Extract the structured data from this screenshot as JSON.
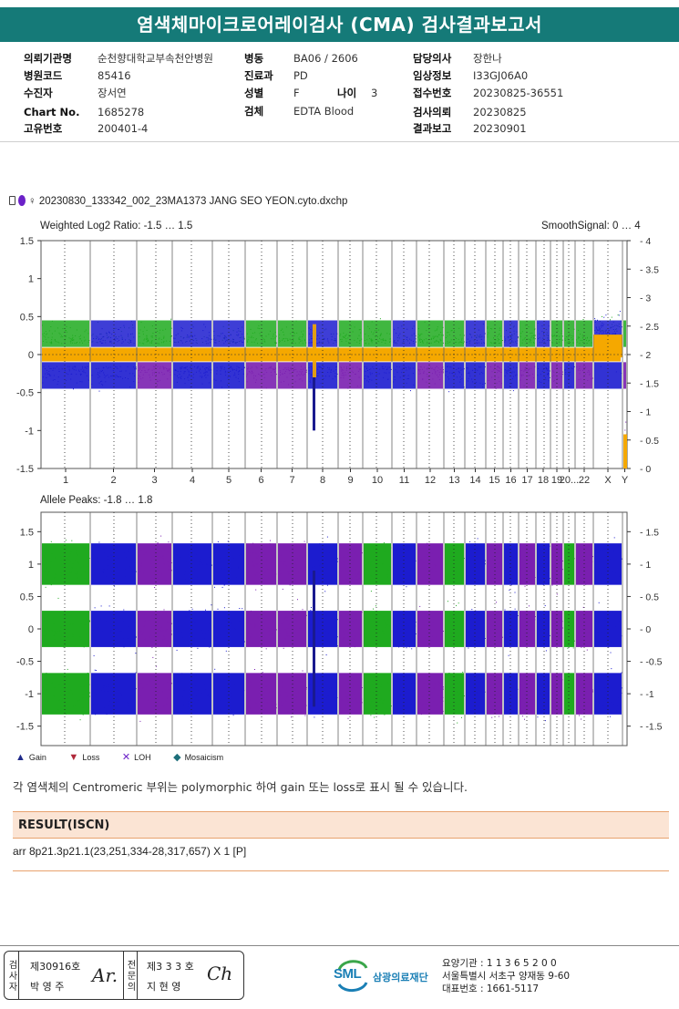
{
  "header": {
    "title": "염색체마이크로어레이검사 (CMA) 검사결과보고서"
  },
  "patient_info": {
    "col1": [
      {
        "label": "의뢰기관명",
        "value": "순천향대학교부속천안병원"
      },
      {
        "label": "병원코드",
        "value": "85416"
      },
      {
        "label": "수진자",
        "value": "장서연"
      },
      {
        "label": "Chart No.",
        "value": "1685278"
      },
      {
        "label": "고유번호",
        "value": "200401-4"
      }
    ],
    "col2": [
      {
        "label": "병동",
        "value": "BA06 / 2606"
      },
      {
        "label": "진료과",
        "value": "PD"
      },
      {
        "label": "성별",
        "value": "F"
      },
      {
        "label": "검체",
        "value": "EDTA Blood"
      }
    ],
    "age": {
      "label": "나이",
      "value": "3"
    },
    "col3": [
      {
        "label": "담당의사",
        "value": "장한나"
      },
      {
        "label": "임상정보",
        "value": "I33GJ06A0"
      },
      {
        "label": "접수번호",
        "value": "20230825-36551"
      },
      {
        "label": "검사의뢰",
        "value": "20230825"
      },
      {
        "label": "결과보고",
        "value": "20230901"
      }
    ]
  },
  "chart_header": {
    "file_name": "♀ 20230830_133342_002_23MA1373 JANG SEO YEON.cyto.dxchp"
  },
  "chart_data": [
    {
      "type": "scatter",
      "title": "Weighted Log2 Ratio: -1.5 … 1.5",
      "right_title": "SmoothSignal: 0 … 4",
      "ylim": [
        -1.5,
        1.5
      ],
      "y_ticks": [
        "1.5",
        "1",
        "0.5",
        "0",
        "-0.5",
        "-1",
        "-1.5"
      ],
      "y2lim": [
        0,
        4
      ],
      "y2_ticks": [
        "4",
        "3.5",
        "3",
        "2.5",
        "2",
        "1.5",
        "1",
        "0.5",
        "0"
      ],
      "categories": [
        "1",
        "2",
        "3",
        "4",
        "5",
        "6",
        "7",
        "8",
        "9",
        "10",
        "11",
        "12",
        "13",
        "14",
        "15",
        "16",
        "17",
        "18",
        "19",
        "20...",
        "22",
        "X",
        "Y"
      ],
      "series": [
        {
          "name": "Weighted Log2 Ratio",
          "center": 0
        },
        {
          "name": "SmoothSignal",
          "center": 2
        }
      ]
    },
    {
      "type": "scatter",
      "title": "Allele Peaks: -1.8 … 1.8",
      "ylim": [
        -1.8,
        1.8
      ],
      "y_ticks": [
        "1.5",
        "1",
        "0.5",
        "0",
        "-0.5",
        "-1",
        "-1.5"
      ],
      "bands": [
        1.0,
        0.0,
        -1.0
      ]
    }
  ],
  "legend": [
    {
      "symbol": "▲",
      "label": "Gain",
      "color": "#1f2a8a"
    },
    {
      "symbol": "▼",
      "label": "Loss",
      "color": "#b0283a"
    },
    {
      "symbol": "✕",
      "label": "LOH",
      "color": "#6b21c8"
    },
    {
      "symbol": "◆",
      "label": "Mosaicism",
      "color": "#1d6f7a"
    }
  ],
  "note": "각 염색체의 Centromeric 부위는 polymorphic 하여 gain 또는 loss로 표시 될 수 있습니다.",
  "result": {
    "heading": "RESULT(ISCN)",
    "text": "arr 8p21.3p21.1(23,251,334-28,317,657) X 1 [P]"
  },
  "signatures": {
    "box1_label": "검사자",
    "box1_no": "제30916호",
    "box1_name": "박 영 주",
    "box2_label": "전문의",
    "box2_no": "제3 3 3 호",
    "box2_name": "지 현 영"
  },
  "org": {
    "logo": "SML",
    "name": "삼광의료재단",
    "line1": "요양기관 : 1 1 3 6 5 2 0 0",
    "line2": "서울특별시 서초구 양재동 9-60",
    "line3": "대표번호 : 1661-5117"
  },
  "colors": {
    "title_bg": "#157a78",
    "blue": "#1c1ccf",
    "green": "#1faa1f",
    "purple": "#7a1fb0",
    "orange": "#f5a800",
    "result_bg": "#fbe4d4",
    "result_border": "#e8a26d"
  }
}
